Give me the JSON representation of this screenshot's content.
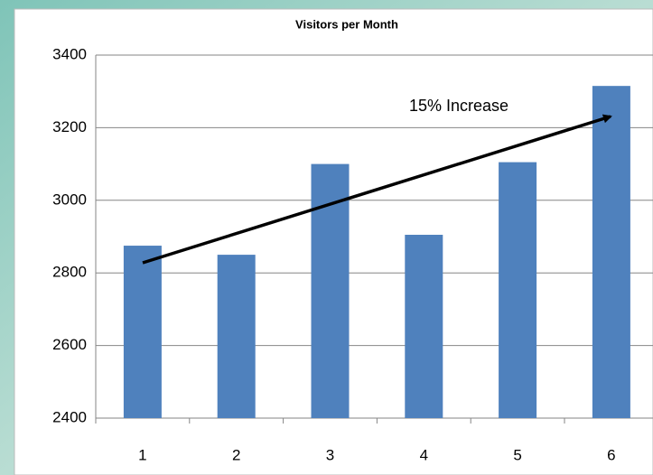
{
  "chart_data": {
    "type": "bar",
    "title": "Visitors per Month",
    "categories": [
      "1",
      "2",
      "3",
      "4",
      "5",
      "6"
    ],
    "values": [
      2875,
      2850,
      3100,
      2905,
      3105,
      3315
    ],
    "color": "#4f81bd",
    "ylim": [
      2400,
      3400
    ],
    "yticks": [
      2400,
      2600,
      2800,
      3000,
      3200,
      3400
    ],
    "grid": true,
    "annotation": "15% Increase"
  }
}
